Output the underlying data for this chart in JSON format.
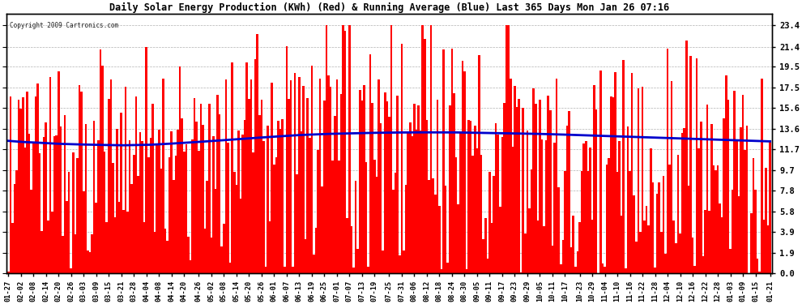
{
  "title": "Daily Solar Energy Production (KWh) (Red) & Running Average (Blue) Last 365 Days Mon Jan 26 07:16",
  "copyright_text": "Copyright 2009 Cartronics.com",
  "bar_color": "#ff0000",
  "avg_color": "#0000cc",
  "background_color": "#ffffff",
  "grid_color": "#aaaaaa",
  "text_color": "#000000",
  "yticks": [
    0.0,
    1.9,
    3.9,
    5.8,
    7.8,
    9.7,
    11.7,
    13.6,
    15.6,
    17.5,
    19.5,
    21.4,
    23.4
  ],
  "ymax": 24.5,
  "x_tick_labels": [
    "01-27",
    "02-02",
    "02-08",
    "02-14",
    "02-20",
    "02-26",
    "03-03",
    "03-09",
    "03-15",
    "03-21",
    "03-28",
    "04-04",
    "04-08",
    "04-14",
    "04-20",
    "04-26",
    "05-02",
    "05-08",
    "05-14",
    "05-20",
    "05-26",
    "06-01",
    "06-07",
    "06-13",
    "06-19",
    "06-25",
    "07-01",
    "07-07",
    "07-13",
    "07-19",
    "07-25",
    "07-31",
    "08-06",
    "08-12",
    "08-18",
    "08-24",
    "08-30",
    "09-05",
    "09-11",
    "09-17",
    "09-23",
    "09-29",
    "10-05",
    "10-11",
    "10-17",
    "10-23",
    "10-29",
    "11-04",
    "11-10",
    "11-16",
    "11-22",
    "11-28",
    "12-04",
    "12-10",
    "12-16",
    "12-22",
    "12-28",
    "01-03",
    "01-09",
    "01-15",
    "01-21"
  ],
  "avg_line": [
    12.5,
    12.4,
    12.35,
    12.28,
    12.22,
    12.18,
    12.15,
    12.12,
    12.1,
    12.08,
    12.1,
    12.12,
    12.18,
    12.25,
    12.32,
    12.4,
    12.48,
    12.56,
    12.65,
    12.74,
    12.82,
    12.9,
    12.98,
    13.05,
    13.1,
    13.15,
    13.18,
    13.21,
    13.24,
    13.26,
    13.28,
    13.29,
    13.3,
    13.3,
    13.3,
    13.3,
    13.28,
    13.26,
    13.24,
    13.22,
    13.2,
    13.18,
    13.15,
    13.12,
    13.08,
    13.04,
    13.0,
    12.96,
    12.92,
    12.88,
    12.84,
    12.8,
    12.76,
    12.72,
    12.68,
    12.64,
    12.6,
    12.56,
    12.52,
    12.48,
    12.45
  ],
  "seed": 137
}
